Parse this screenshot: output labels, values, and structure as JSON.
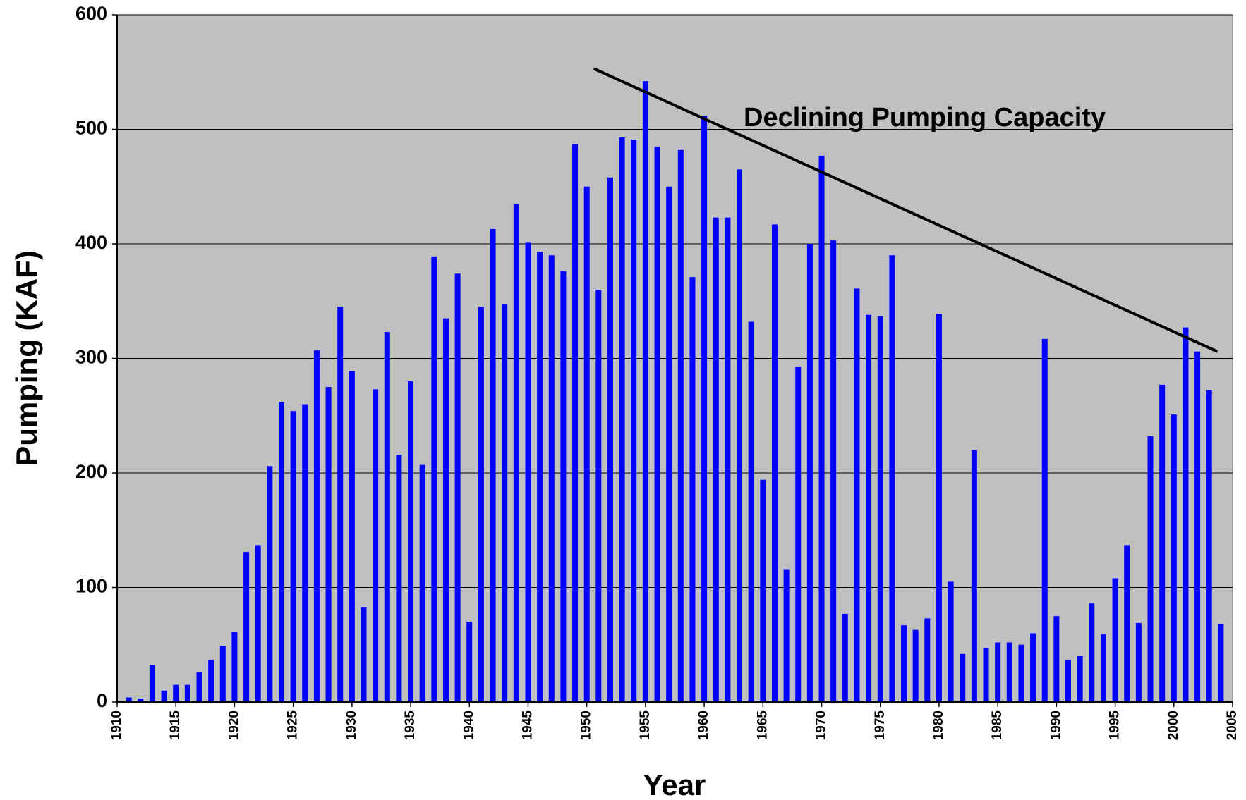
{
  "chart_data": {
    "type": "bar",
    "x_label": "Year",
    "y_label": "Pumping (KAF)",
    "annotation": "Declining Pumping Capacity",
    "x": [
      1911,
      1912,
      1913,
      1914,
      1915,
      1916,
      1917,
      1918,
      1919,
      1920,
      1921,
      1922,
      1923,
      1924,
      1925,
      1926,
      1927,
      1928,
      1929,
      1930,
      1931,
      1932,
      1933,
      1934,
      1935,
      1936,
      1937,
      1938,
      1939,
      1940,
      1941,
      1942,
      1943,
      1944,
      1945,
      1946,
      1947,
      1948,
      1949,
      1950,
      1951,
      1952,
      1953,
      1954,
      1955,
      1956,
      1957,
      1958,
      1959,
      1960,
      1961,
      1962,
      1963,
      1964,
      1965,
      1966,
      1967,
      1968,
      1969,
      1970,
      1971,
      1972,
      1973,
      1974,
      1975,
      1976,
      1977,
      1978,
      1979,
      1980,
      1981,
      1982,
      1983,
      1984,
      1985,
      1986,
      1987,
      1988,
      1989,
      1990,
      1991,
      1992,
      1993,
      1994,
      1995,
      1996,
      1997,
      1998,
      1999,
      2000,
      2001,
      2002,
      2003,
      2004
    ],
    "values": [
      4,
      3,
      32,
      10,
      15,
      15,
      26,
      37,
      49,
      61,
      131,
      137,
      206,
      262,
      254,
      260,
      307,
      275,
      345,
      289,
      83,
      273,
      323,
      216,
      280,
      207,
      389,
      335,
      374,
      70,
      345,
      413,
      347,
      435,
      401,
      393,
      390,
      376,
      487,
      450,
      360,
      458,
      493,
      491,
      542,
      485,
      450,
      482,
      371,
      512,
      423,
      423,
      465,
      332,
      194,
      417,
      116,
      293,
      400,
      477,
      403,
      77,
      361,
      338,
      337,
      390,
      67,
      63,
      73,
      339,
      105,
      42,
      220,
      47,
      52,
      52,
      50,
      60,
      317,
      75,
      37,
      40,
      86,
      59,
      108,
      137,
      69,
      232,
      277,
      251,
      327,
      306,
      272,
      68
    ],
    "color": "#0000ff",
    "trend_line": {
      "x": [
        1950.6,
        2003.7
      ],
      "y": [
        553,
        306
      ],
      "color": "#000000"
    },
    "xlim": [
      1910,
      2005
    ],
    "xticks": [
      1910,
      1915,
      1920,
      1925,
      1930,
      1935,
      1940,
      1945,
      1950,
      1955,
      1960,
      1965,
      1970,
      1975,
      1980,
      1985,
      1990,
      1995,
      2000,
      2005
    ],
    "ylim": [
      0,
      600
    ],
    "yticks": [
      0,
      100,
      200,
      300,
      400,
      500,
      600
    ],
    "grid": true,
    "background": "#c0c0c0"
  }
}
